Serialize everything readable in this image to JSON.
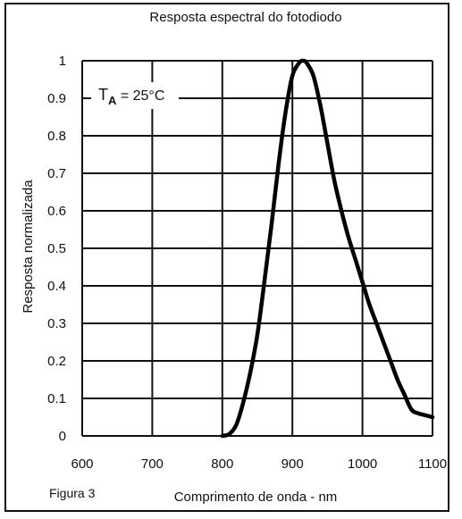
{
  "chart_data": {
    "type": "line",
    "title": "Resposta espectral do fotodiodo",
    "xlabel": "Comprimento de onda - nm",
    "ylabel": "Resposta normalizada",
    "xlim": [
      600,
      1100
    ],
    "ylim": [
      0,
      1
    ],
    "x_ticks": [
      "600",
      "700",
      "800",
      "900",
      "1000",
      "1100"
    ],
    "y_ticks": [
      "0",
      "0.1",
      "0.2",
      "0.3",
      "0.4",
      "0.5",
      "0.6",
      "0.7",
      "0.8",
      "0.9",
      "1"
    ],
    "grid": true,
    "annotation": {
      "symbol": "T",
      "subscript": "A",
      "text": " = 25°C"
    },
    "figure_label": "Figura 3",
    "series": [
      {
        "x": [
          800,
          810,
          820,
          830,
          840,
          850,
          860,
          870,
          880,
          890,
          900,
          910,
          915,
          920,
          930,
          940,
          950,
          960,
          970,
          980,
          990,
          1000,
          1010,
          1020,
          1030,
          1040,
          1050,
          1060,
          1070,
          1080,
          1090,
          1100
        ],
        "y": [
          0.0,
          0.005,
          0.03,
          0.09,
          0.17,
          0.27,
          0.41,
          0.56,
          0.72,
          0.86,
          0.96,
          0.995,
          1.0,
          0.995,
          0.96,
          0.88,
          0.78,
          0.68,
          0.6,
          0.53,
          0.47,
          0.41,
          0.35,
          0.3,
          0.25,
          0.2,
          0.15,
          0.11,
          0.07,
          0.06,
          0.055,
          0.05
        ]
      }
    ]
  },
  "style": {
    "line_color": "#000000",
    "grid_color": "#111111",
    "text_color": "#111111"
  }
}
